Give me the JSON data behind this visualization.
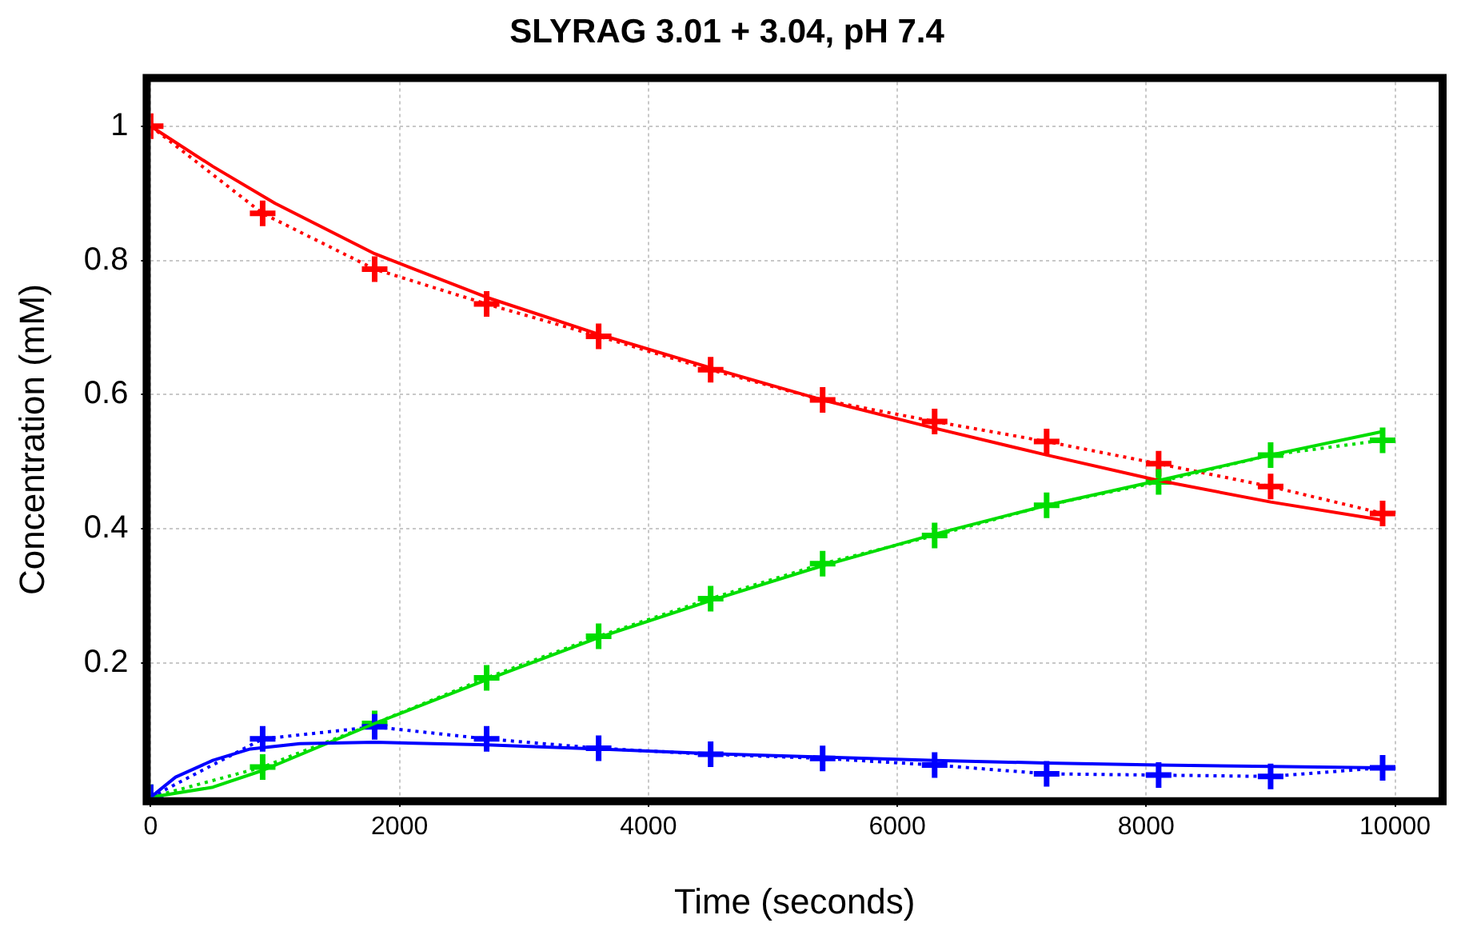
{
  "chart_data": {
    "type": "line",
    "title": "SLYRAG 3.01 + 3.04, pH 7.4",
    "xlabel": "Time (seconds)",
    "ylabel": "Concentration (mM)",
    "xlim": [
      0,
      10350
    ],
    "xticks": [
      0,
      2000,
      4000,
      6000,
      8000,
      10000
    ],
    "ylim": [
      0,
      1.066
    ],
    "yticks": [
      0.2,
      0.4,
      0.6,
      0.8,
      1
    ],
    "grid": true,
    "legend": false,
    "series": [
      {
        "color": "#ff0000",
        "marker": "cross",
        "line_style": "dotted",
        "x": [
          0,
          900,
          1800,
          2700,
          3600,
          4500,
          5400,
          6300,
          7200,
          8100,
          9000,
          9900
        ],
        "values": [
          1,
          0.87,
          0.787,
          0.735,
          0.687,
          0.637,
          0.592,
          0.56,
          0.53,
          0.497,
          0.463,
          0.423
        ]
      },
      {
        "color": "#00dd00",
        "marker": "cross",
        "line_style": "dotted",
        "x": [
          0,
          900,
          1800,
          2700,
          3600,
          4500,
          5400,
          6300,
          7200,
          8100,
          9000,
          9900
        ],
        "values": [
          0,
          0.045,
          0.11,
          0.178,
          0.24,
          0.296,
          0.348,
          0.39,
          0.435,
          0.47,
          0.51,
          0.532
        ]
      },
      {
        "color": "#0000ff",
        "marker": "cross",
        "line_style": "dotted",
        "x": [
          0,
          900,
          1800,
          2700,
          3600,
          4500,
          5400,
          6300,
          7200,
          8100,
          9000,
          9900
        ],
        "values": [
          0,
          0.087,
          0.105,
          0.087,
          0.073,
          0.064,
          0.058,
          0.048,
          0.035,
          0.033,
          0.031,
          0.044
        ]
      },
      {
        "color": "#ff0000",
        "marker": "none",
        "line_style": "solid",
        "x": [
          0,
          500,
          1000,
          1800,
          2700,
          3600,
          4500,
          5400,
          6300,
          7200,
          8100,
          9000,
          9900
        ],
        "values": [
          1,
          0.94,
          0.885,
          0.81,
          0.745,
          0.69,
          0.64,
          0.592,
          0.55,
          0.51,
          0.472,
          0.44,
          0.413
        ]
      },
      {
        "color": "#00dd00",
        "marker": "none",
        "line_style": "solid",
        "x": [
          0,
          500,
          900,
          1800,
          2700,
          3600,
          4500,
          5400,
          6300,
          7200,
          8100,
          9000,
          9900
        ],
        "values": [
          0,
          0.015,
          0.04,
          0.11,
          0.175,
          0.238,
          0.293,
          0.345,
          0.392,
          0.435,
          0.472,
          0.51,
          0.545
        ]
      },
      {
        "color": "#0000ff",
        "marker": "none",
        "line_style": "solid",
        "x": [
          0,
          200,
          500,
          800,
          1200,
          1800,
          2700,
          3600,
          4500,
          5400,
          6300,
          7200,
          8100,
          9000,
          9900
        ],
        "values": [
          0,
          0.03,
          0.055,
          0.072,
          0.08,
          0.082,
          0.078,
          0.072,
          0.065,
          0.06,
          0.055,
          0.051,
          0.048,
          0.046,
          0.044
        ]
      }
    ]
  }
}
